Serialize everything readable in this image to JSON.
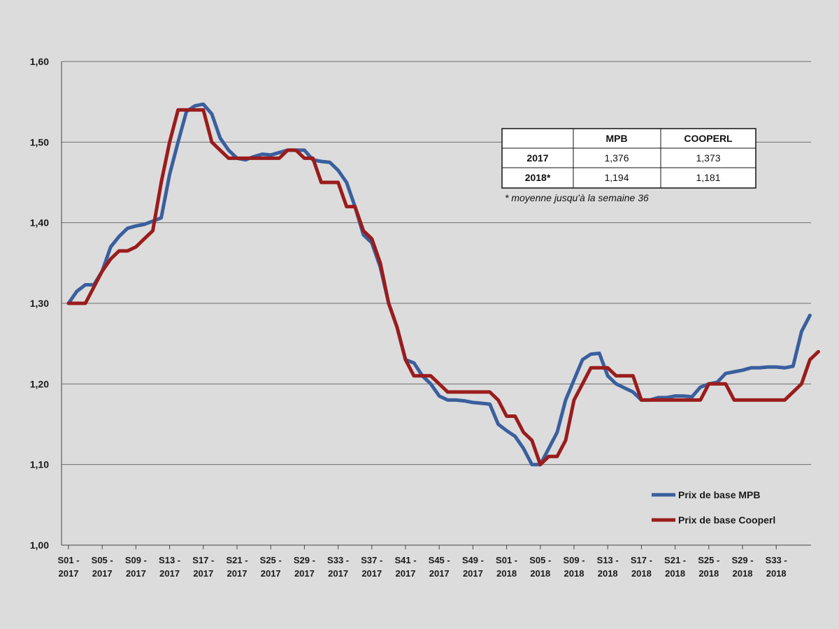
{
  "chart_data": {
    "type": "line",
    "title": "",
    "xlabel": "",
    "ylabel": "",
    "ylim": [
      1.0,
      1.6
    ],
    "y_ticks": [
      "1,00",
      "1,10",
      "1,20",
      "1,30",
      "1,40",
      "1,50",
      "1,60"
    ],
    "x_tick_labels": [
      [
        "S01 -",
        "2017"
      ],
      [
        "S05 -",
        "2017"
      ],
      [
        "S09 -",
        "2017"
      ],
      [
        "S13 -",
        "2017"
      ],
      [
        "S17 -",
        "2017"
      ],
      [
        "S21 -",
        "2017"
      ],
      [
        "S25 -",
        "2017"
      ],
      [
        "S29 -",
        "2017"
      ],
      [
        "S33 -",
        "2017"
      ],
      [
        "S37 -",
        "2017"
      ],
      [
        "S41 -",
        "2017"
      ],
      [
        "S45 -",
        "2017"
      ],
      [
        "S49 -",
        "2017"
      ],
      [
        "S01 -",
        "2018"
      ],
      [
        "S05 -",
        "2018"
      ],
      [
        "S09 -",
        "2018"
      ],
      [
        "S13 -",
        "2018"
      ],
      [
        "S17 -",
        "2018"
      ],
      [
        "S21 -",
        "2018"
      ],
      [
        "S25 -",
        "2018"
      ],
      [
        "S29 -",
        "2018"
      ],
      [
        "S33 -",
        "2018"
      ]
    ],
    "weeks_per_tick": 4,
    "grid": true,
    "legend_position": "bottom-right",
    "series": [
      {
        "name": "Prix de base MPB",
        "color": "#3a5f9e",
        "values": [
          1.3,
          1.315,
          1.323,
          1.323,
          1.34,
          1.37,
          1.383,
          1.393,
          1.396,
          1.398,
          1.402,
          1.406,
          1.46,
          1.5,
          1.538,
          1.545,
          1.547,
          1.535,
          1.505,
          1.49,
          1.48,
          1.478,
          1.482,
          1.485,
          1.484,
          1.487,
          1.49,
          1.49,
          1.49,
          1.478,
          1.476,
          1.475,
          1.465,
          1.45,
          1.42,
          1.385,
          1.375,
          1.345,
          1.3,
          1.27,
          1.23,
          1.226,
          1.21,
          1.2,
          1.185,
          1.18,
          1.18,
          1.179,
          1.177,
          1.176,
          1.175,
          1.15,
          1.142,
          1.135,
          1.12,
          1.1,
          1.1,
          1.12,
          1.14,
          1.18,
          1.205,
          1.23,
          1.237,
          1.238,
          1.21,
          1.2,
          1.195,
          1.19,
          1.18,
          1.18,
          1.183,
          1.183,
          1.185,
          1.185,
          1.184,
          1.196,
          1.2,
          1.202,
          1.213,
          1.215,
          1.217,
          1.22,
          1.22,
          1.221,
          1.221,
          1.22,
          1.222,
          1.265,
          1.285
        ]
      },
      {
        "name": "Prix de base Cooperl",
        "color": "#9a1c1c",
        "values": [
          1.3,
          1.3,
          1.3,
          1.32,
          1.34,
          1.355,
          1.365,
          1.365,
          1.37,
          1.38,
          1.39,
          1.45,
          1.5,
          1.54,
          1.54,
          1.54,
          1.54,
          1.5,
          1.49,
          1.48,
          1.48,
          1.48,
          1.48,
          1.48,
          1.48,
          1.48,
          1.49,
          1.49,
          1.48,
          1.48,
          1.45,
          1.45,
          1.45,
          1.42,
          1.42,
          1.39,
          1.38,
          1.35,
          1.3,
          1.27,
          1.23,
          1.21,
          1.21,
          1.21,
          1.2,
          1.19,
          1.19,
          1.19,
          1.19,
          1.19,
          1.19,
          1.18,
          1.16,
          1.16,
          1.14,
          1.13,
          1.1,
          1.11,
          1.11,
          1.13,
          1.18,
          1.2,
          1.22,
          1.22,
          1.22,
          1.21,
          1.21,
          1.21,
          1.18,
          1.18,
          1.18,
          1.18,
          1.18,
          1.18,
          1.18,
          1.18,
          1.2,
          1.2,
          1.2,
          1.18,
          1.18,
          1.18,
          1.18,
          1.18,
          1.18,
          1.18,
          1.19,
          1.2,
          1.23,
          1.24
        ]
      }
    ]
  },
  "summary_table": {
    "headers": [
      "",
      "MPB",
      "COOPERL"
    ],
    "rows": [
      [
        "2017",
        "1,376",
        "1,373"
      ],
      [
        "2018*",
        "1,194",
        "1,181"
      ]
    ],
    "footnote": "* moyenne jusqu'à la semaine 36"
  },
  "colors": {
    "background": "#dcdcdc",
    "grid": "#6e6e6e",
    "axis": "#444444"
  }
}
